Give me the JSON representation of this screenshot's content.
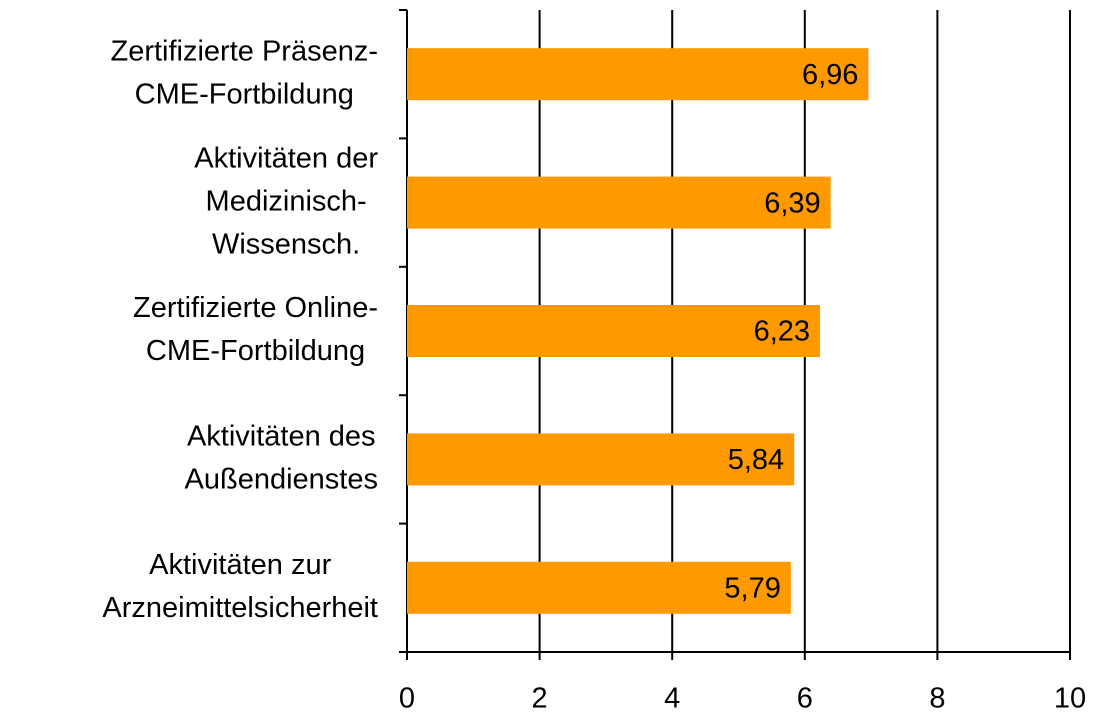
{
  "chart_data": {
    "type": "barh",
    "categories": [
      [
        "Zertifizierte Präsenz-",
        "CME-Fortbildung"
      ],
      [
        "Aktivitäten der",
        "Medizinisch-",
        "Wissensch."
      ],
      [
        "Zertifizierte Online-",
        "CME-Fortbildung"
      ],
      [
        "Aktivitäten des",
        "Außendienstes"
      ],
      [
        "Aktivitäten zur",
        "Arzneimittelsicherheit"
      ]
    ],
    "values": [
      6.96,
      6.39,
      6.23,
      5.84,
      5.79
    ],
    "value_labels": [
      "6,96",
      "6,39",
      "6,23",
      "5,84",
      "5,79"
    ],
    "color": "#ff9900",
    "xlim": [
      0,
      10
    ],
    "xticks": [
      0,
      2,
      4,
      6,
      8,
      10
    ],
    "grid": true
  }
}
